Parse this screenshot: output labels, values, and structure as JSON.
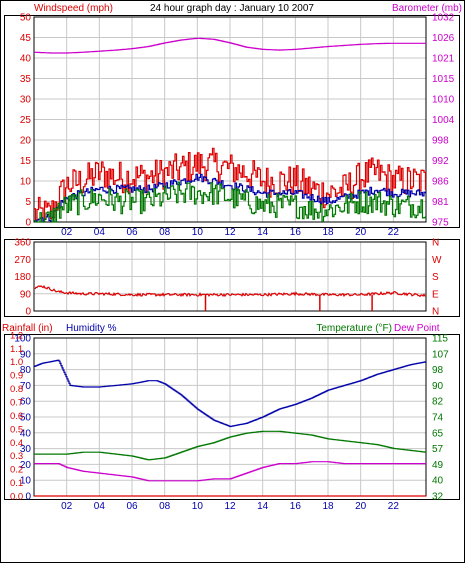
{
  "title": "24 hour graph day : January 10 2007",
  "colors": {
    "red": "#dd0000",
    "blue": "#0000aa",
    "green": "#007700",
    "magenta": "#cc00cc",
    "grid": "#c8c8c8",
    "frame": "#000000"
  },
  "chart_data": [
    {
      "type": "line",
      "panel": "wind-barometer",
      "left_label": "Windspeed (mph)",
      "right_label": "Barometer (mb)",
      "x_ticks": [
        "02",
        "04",
        "06",
        "08",
        "10",
        "12",
        "14",
        "16",
        "18",
        "20",
        "22"
      ],
      "x_range": [
        0,
        24
      ],
      "left_ticks": [
        "0",
        "5",
        "10",
        "15",
        "20",
        "25",
        "30",
        "35",
        "40",
        "45",
        "50"
      ],
      "left_range": [
        0,
        50
      ],
      "right_ticks": [
        "975",
        "981",
        "986",
        "992",
        "998",
        "1004",
        "1010",
        "1015",
        "1021",
        "1026",
        "1032"
      ],
      "right_range": [
        975,
        1032
      ],
      "grid": true,
      "series": [
        {
          "axis": "left",
          "color": "red",
          "x": [
            0,
            1,
            1.5,
            2,
            3,
            4,
            5,
            6,
            7,
            8,
            9,
            10,
            11,
            12,
            13,
            14,
            15,
            16,
            17,
            18,
            19,
            20,
            21,
            22,
            23,
            24
          ],
          "y": [
            2,
            2,
            6,
            9,
            10,
            12,
            11,
            11,
            11,
            12,
            13,
            14,
            14,
            13,
            12,
            10,
            10,
            10,
            8,
            7,
            8,
            11,
            12,
            10,
            10,
            10
          ],
          "jitter": 4
        },
        {
          "axis": "left",
          "color": "blue",
          "x": [
            0,
            1,
            1.5,
            2,
            3,
            4,
            5,
            6,
            7,
            8,
            9,
            10,
            11,
            12,
            13,
            14,
            15,
            16,
            17,
            18,
            19,
            20,
            21,
            22,
            23,
            24
          ],
          "y": [
            1,
            1,
            4,
            6,
            7,
            8,
            8,
            8,
            8,
            9,
            10,
            11,
            10,
            9,
            8,
            7,
            7,
            7,
            6,
            5,
            6,
            7,
            8,
            7,
            7,
            7
          ],
          "jitter": 1
        },
        {
          "axis": "left",
          "color": "green",
          "x": [
            0,
            1,
            1.5,
            2,
            3,
            4,
            5,
            6,
            7,
            8,
            9,
            10,
            11,
            12,
            13,
            14,
            15,
            16,
            17,
            18,
            19,
            20,
            21,
            22,
            23,
            24
          ],
          "y": [
            0,
            0.5,
            3,
            4,
            5,
            6,
            5,
            5,
            5,
            6,
            7,
            7,
            7,
            6,
            5,
            4,
            4,
            4,
            3,
            3,
            4,
            5,
            5,
            4,
            4,
            4
          ],
          "jitter": 3
        },
        {
          "axis": "right",
          "color": "magenta",
          "x": [
            0,
            1,
            2,
            3,
            4,
            5,
            6,
            7,
            8,
            9,
            10,
            11,
            12,
            13,
            14,
            15,
            16,
            17,
            18,
            19,
            20,
            21,
            22,
            23,
            24
          ],
          "y": [
            1022.2,
            1022,
            1022,
            1022.2,
            1022.5,
            1022.8,
            1023.2,
            1023.8,
            1024.8,
            1025.6,
            1026.1,
            1025.8,
            1024.8,
            1023.6,
            1023,
            1022.8,
            1023,
            1023.4,
            1023.8,
            1024.1,
            1024.4,
            1024.6,
            1024.7,
            1024.7,
            1024.7
          ],
          "jitter": 0
        }
      ]
    },
    {
      "type": "scatter",
      "panel": "wind-direction",
      "left_ticks": [
        "0",
        "90",
        "180",
        "270",
        "360"
      ],
      "left_range": [
        0,
        360
      ],
      "right_ticks": [
        "N",
        "E",
        "S",
        "W",
        "N"
      ],
      "x_range": [
        0,
        24
      ],
      "grid": true,
      "series": [
        {
          "axis": "left",
          "color": "red",
          "x": [
            0,
            0.5,
            1,
            1.5,
            2,
            3,
            4,
            5,
            6,
            8,
            10,
            12,
            14,
            16,
            18,
            20,
            22,
            24
          ],
          "y": [
            120,
            130,
            115,
            100,
            95,
            90,
            90,
            88,
            85,
            85,
            85,
            85,
            85,
            90,
            85,
            85,
            95,
            80
          ],
          "jitter": 14,
          "spikes": [
            17.5,
            20.7,
            10.5
          ]
        }
      ]
    },
    {
      "type": "line",
      "panel": "humidity-temperature",
      "left_label_1": "Rainfall (in)",
      "left_label_2": "Humidity %",
      "right_label_1": "Temperature (°F)",
      "right_label_2": "Dew Point",
      "x_ticks": [
        "02",
        "04",
        "06",
        "08",
        "10",
        "12",
        "14",
        "16",
        "18",
        "20",
        "22"
      ],
      "x_range": [
        0,
        24
      ],
      "left_ticks": [
        "0",
        "10",
        "20",
        "30",
        "40",
        "50",
        "60",
        "70",
        "80",
        "90",
        "100"
      ],
      "left_range": [
        0,
        100
      ],
      "rain_ticks": [
        "0.0",
        "0.1",
        "0.2",
        "0.3",
        "0.4",
        "0.5",
        "0.6",
        "0.7",
        "0.8",
        "0.9",
        "1.0",
        "1.1",
        "1.2"
      ],
      "right_ticks": [
        "32",
        "40",
        "49",
        "57",
        "65",
        "74",
        "82",
        "90",
        "98",
        "107",
        "115"
      ],
      "right_range": [
        32,
        115
      ],
      "grid": true,
      "series": [
        {
          "axis": "left",
          "color": "blue",
          "x": [
            0,
            0.5,
            1.5,
            2.2,
            3,
            4,
            5,
            6,
            7,
            7.5,
            8,
            9,
            10,
            11,
            12,
            13,
            14,
            15,
            16,
            17,
            18,
            19,
            20,
            21,
            22,
            23,
            24
          ],
          "y": [
            82,
            84,
            86,
            70,
            69,
            69,
            70,
            71,
            73,
            73,
            71,
            64,
            55,
            48,
            44,
            46,
            50,
            55,
            58,
            62,
            67,
            70,
            73,
            77,
            80,
            83,
            85
          ]
        },
        {
          "axis": "right",
          "color": "green",
          "x": [
            0,
            1,
            2,
            3,
            4,
            5,
            6,
            7,
            8,
            9,
            10,
            11,
            12,
            13,
            14,
            15,
            16,
            17,
            18,
            19,
            20,
            21,
            22,
            23,
            24
          ],
          "y": [
            54,
            54,
            54,
            55,
            55,
            54,
            53,
            51,
            52,
            55,
            58,
            60,
            63,
            65,
            66,
            66,
            65,
            64,
            62,
            61,
            60,
            59,
            57,
            56,
            55
          ]
        },
        {
          "axis": "right",
          "color": "magenta",
          "x": [
            0,
            1,
            1.5,
            2,
            3,
            4,
            5,
            6,
            7,
            8,
            9,
            10,
            11,
            12,
            13,
            14,
            15,
            16,
            17,
            18,
            19,
            20,
            21,
            22,
            23,
            24
          ],
          "y": [
            49,
            49,
            49,
            47,
            45,
            44,
            43,
            42,
            40,
            40,
            40,
            40,
            41,
            41,
            44,
            47,
            49,
            49,
            50,
            50,
            49,
            49,
            49,
            49,
            49,
            49
          ]
        },
        {
          "axis": "left",
          "color": "red",
          "x": [
            0,
            24
          ],
          "y": [
            0,
            0
          ]
        }
      ]
    }
  ]
}
